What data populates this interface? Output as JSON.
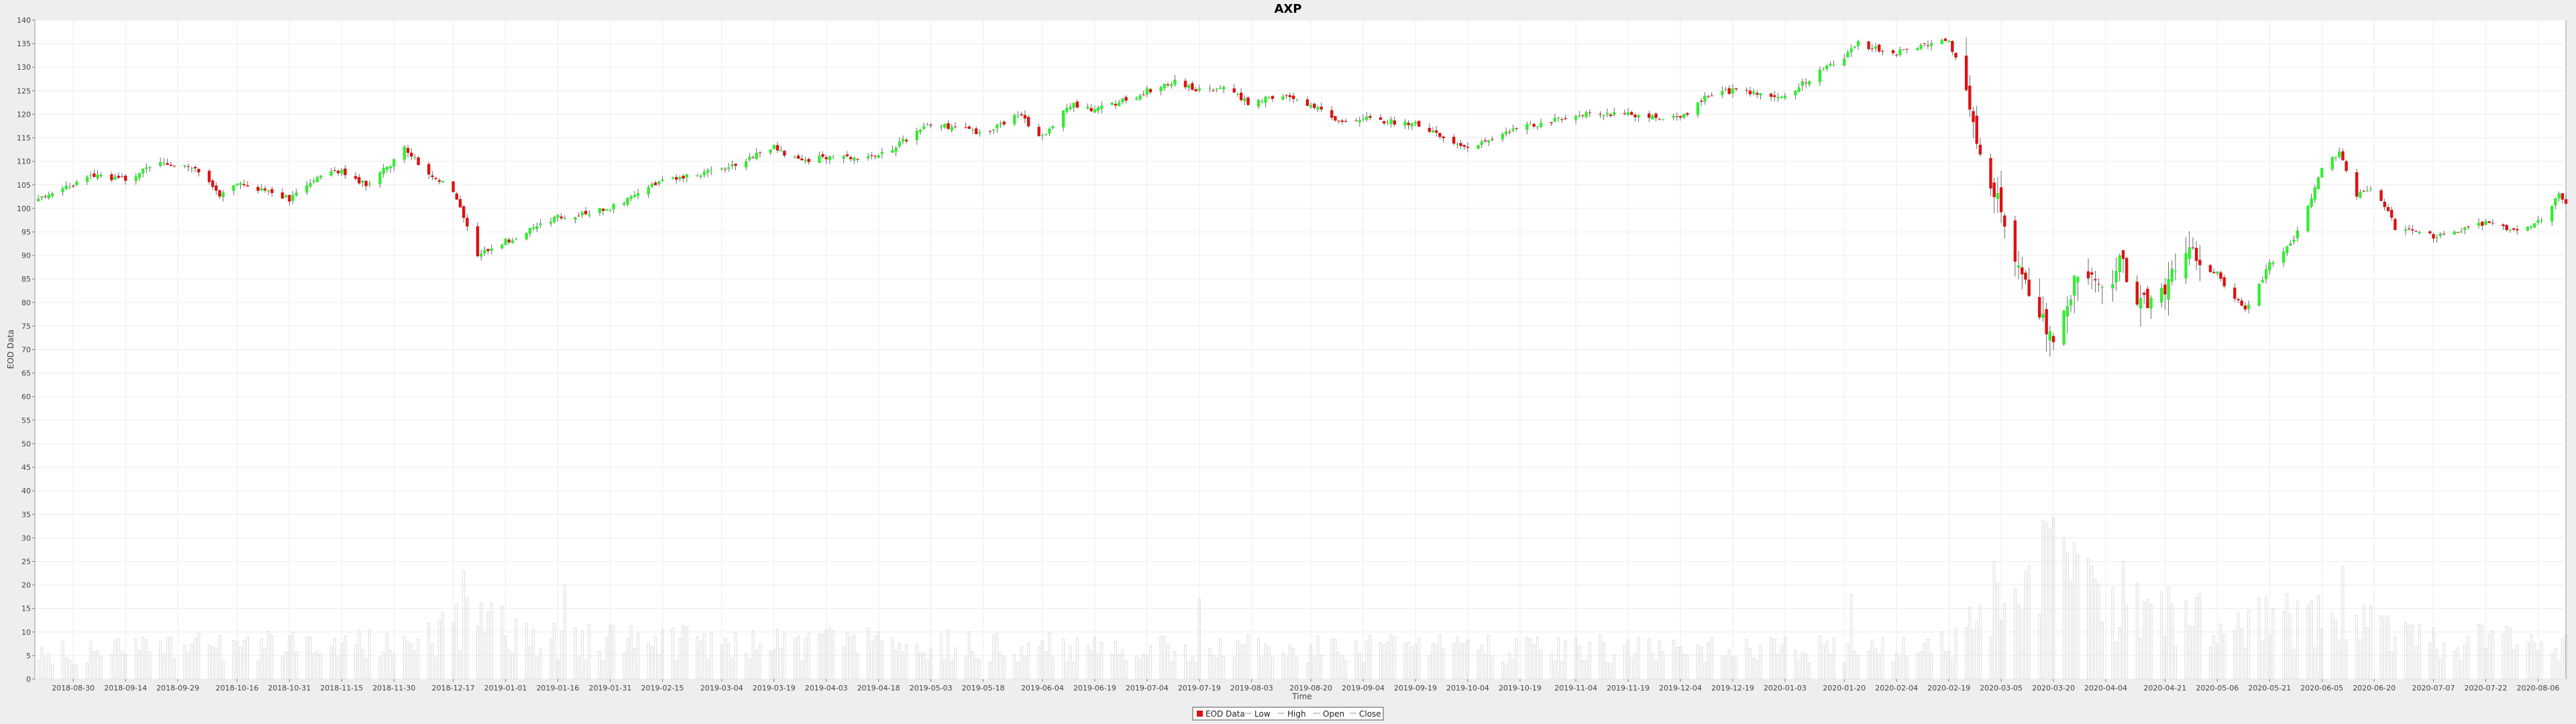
{
  "chart_data": {
    "type": "candlestick",
    "title": "AXP",
    "xlabel": "Time",
    "ylabel": "EOD Data",
    "ylim": [
      0,
      140
    ],
    "ytick_step": 5,
    "x_range": [
      "2018-08-19",
      "2020-08-14"
    ],
    "grid": true,
    "legend_position": "bottom-center",
    "legend": [
      "EOD Data",
      "Low",
      "High",
      "Open",
      "Close"
    ],
    "colors": {
      "up": "#33ee33",
      "down": "#dd1111",
      "wick": "#444444",
      "volume": "#dddddd",
      "grid": "#ececec",
      "plot_bg": "#ffffff",
      "page_bg": "#eeeeee"
    },
    "x_ticks": [
      "2018-08-30",
      "2018-09-14",
      "2018-09-29",
      "2018-10-16",
      "2018-10-31",
      "2018-11-15",
      "2018-11-30",
      "2018-12-17",
      "2019-01-01",
      "2019-01-16",
      "2019-01-31",
      "2019-02-15",
      "2019-03-04",
      "2019-03-19",
      "2019-04-03",
      "2019-04-18",
      "2019-05-03",
      "2019-05-18",
      "2019-06-04",
      "2019-06-19",
      "2019-07-04",
      "2019-07-19",
      "2019-08-03",
      "2019-08-20",
      "2019-09-04",
      "2019-09-19",
      "2019-10-04",
      "2019-10-19",
      "2019-11-04",
      "2019-11-19",
      "2019-12-04",
      "2019-12-19",
      "2020-01-03",
      "2020-01-20",
      "2020-02-04",
      "2020-02-19",
      "2020-03-05",
      "2020-03-20",
      "2020-04-04",
      "2020-04-21",
      "2020-05-06",
      "2020-05-21",
      "2020-06-05",
      "2020-06-20",
      "2020-07-07",
      "2020-07-22",
      "2020-08-06"
    ],
    "close_path": [
      [
        "2018-08-20",
        102
      ],
      [
        "2018-08-30",
        105
      ],
      [
        "2018-09-05",
        107
      ],
      [
        "2018-09-14",
        106
      ],
      [
        "2018-09-24",
        110
      ],
      [
        "2018-09-29",
        109
      ],
      [
        "2018-10-05",
        108
      ],
      [
        "2018-10-11",
        103
      ],
      [
        "2018-10-16",
        105
      ],
      [
        "2018-10-24",
        104
      ],
      [
        "2018-10-31",
        102
      ],
      [
        "2018-11-08",
        107
      ],
      [
        "2018-11-15",
        108
      ],
      [
        "2018-11-22",
        105
      ],
      [
        "2018-11-30",
        110
      ],
      [
        "2018-12-03",
        113
      ],
      [
        "2018-12-10",
        107
      ],
      [
        "2018-12-17",
        104
      ],
      [
        "2018-12-24",
        90
      ],
      [
        "2019-01-01",
        93
      ],
      [
        "2019-01-10",
        96
      ],
      [
        "2019-01-16",
        98
      ],
      [
        "2019-01-31",
        100
      ],
      [
        "2019-02-15",
        106
      ],
      [
        "2019-03-04",
        108
      ],
      [
        "2019-03-19",
        113
      ],
      [
        "2019-03-26",
        110
      ],
      [
        "2019-04-03",
        111
      ],
      [
        "2019-04-18",
        111
      ],
      [
        "2019-05-03",
        118
      ],
      [
        "2019-05-18",
        116
      ],
      [
        "2019-05-28",
        120
      ],
      [
        "2019-06-04",
        115
      ],
      [
        "2019-06-12",
        122
      ],
      [
        "2019-06-19",
        121
      ],
      [
        "2019-06-28",
        123
      ],
      [
        "2019-07-04",
        125
      ],
      [
        "2019-07-12",
        127
      ],
      [
        "2019-07-19",
        125
      ],
      [
        "2019-07-26",
        126
      ],
      [
        "2019-08-03",
        122
      ],
      [
        "2019-08-10",
        124
      ],
      [
        "2019-08-20",
        122
      ],
      [
        "2019-08-28",
        118
      ],
      [
        "2019-09-04",
        119
      ],
      [
        "2019-09-19",
        118
      ],
      [
        "2019-10-04",
        113
      ],
      [
        "2019-10-19",
        117
      ],
      [
        "2019-11-04",
        120
      ],
      [
        "2019-11-19",
        120
      ],
      [
        "2019-12-04",
        119
      ],
      [
        "2019-12-12",
        124
      ],
      [
        "2019-12-19",
        125
      ],
      [
        "2020-01-03",
        124
      ],
      [
        "2020-01-13",
        129
      ],
      [
        "2020-01-20",
        132
      ],
      [
        "2020-01-24",
        135
      ],
      [
        "2020-02-04",
        133
      ],
      [
        "2020-02-14",
        135
      ],
      [
        "2020-02-19",
        136
      ],
      [
        "2020-02-24",
        125
      ],
      [
        "2020-02-28",
        112
      ],
      [
        "2020-03-05",
        100
      ],
      [
        "2020-03-10",
        88
      ],
      [
        "2020-03-16",
        78
      ],
      [
        "2020-03-20",
        72
      ],
      [
        "2020-03-24",
        80
      ],
      [
        "2020-03-28",
        89
      ],
      [
        "2020-04-04",
        82
      ],
      [
        "2020-04-08",
        90
      ],
      [
        "2020-04-14",
        80
      ],
      [
        "2020-04-21",
        84
      ],
      [
        "2020-04-28",
        90
      ],
      [
        "2020-05-06",
        86
      ],
      [
        "2020-05-14",
        78
      ],
      [
        "2020-05-21",
        88
      ],
      [
        "2020-05-28",
        93
      ],
      [
        "2020-06-05",
        108
      ],
      [
        "2020-06-10",
        112
      ],
      [
        "2020-06-15",
        103
      ],
      [
        "2020-06-20",
        105
      ],
      [
        "2020-06-26",
        96
      ],
      [
        "2020-07-07",
        94
      ],
      [
        "2020-07-14",
        95
      ],
      [
        "2020-07-22",
        97
      ],
      [
        "2020-07-30",
        95
      ],
      [
        "2020-08-06",
        97
      ],
      [
        "2020-08-12",
        103
      ],
      [
        "2020-08-14",
        101
      ]
    ],
    "volume_path": [
      [
        "2018-08-20",
        6
      ],
      [
        "2018-12-10",
        9
      ],
      [
        "2018-12-24",
        15
      ],
      [
        "2019-01-10",
        9
      ],
      [
        "2019-07-19",
        7
      ],
      [
        "2020-01-20",
        7
      ],
      [
        "2020-02-19",
        9
      ],
      [
        "2020-02-28",
        16
      ],
      [
        "2020-03-10",
        24
      ],
      [
        "2020-03-20",
        26
      ],
      [
        "2020-04-04",
        17
      ],
      [
        "2020-05-06",
        13
      ],
      [
        "2020-06-05",
        14
      ],
      [
        "2020-07-07",
        9
      ],
      [
        "2020-08-14",
        8
      ]
    ],
    "volume_spikes": [
      [
        "2018-12-20",
        23
      ],
      [
        "2019-01-18",
        20
      ],
      [
        "2019-07-19",
        17
      ],
      [
        "2020-01-22",
        18
      ],
      [
        "2020-03-19",
        32
      ],
      [
        "2020-03-23",
        30
      ],
      [
        "2020-03-26",
        29
      ],
      [
        "2020-04-09",
        25
      ],
      [
        "2020-06-11",
        24
      ]
    ]
  }
}
